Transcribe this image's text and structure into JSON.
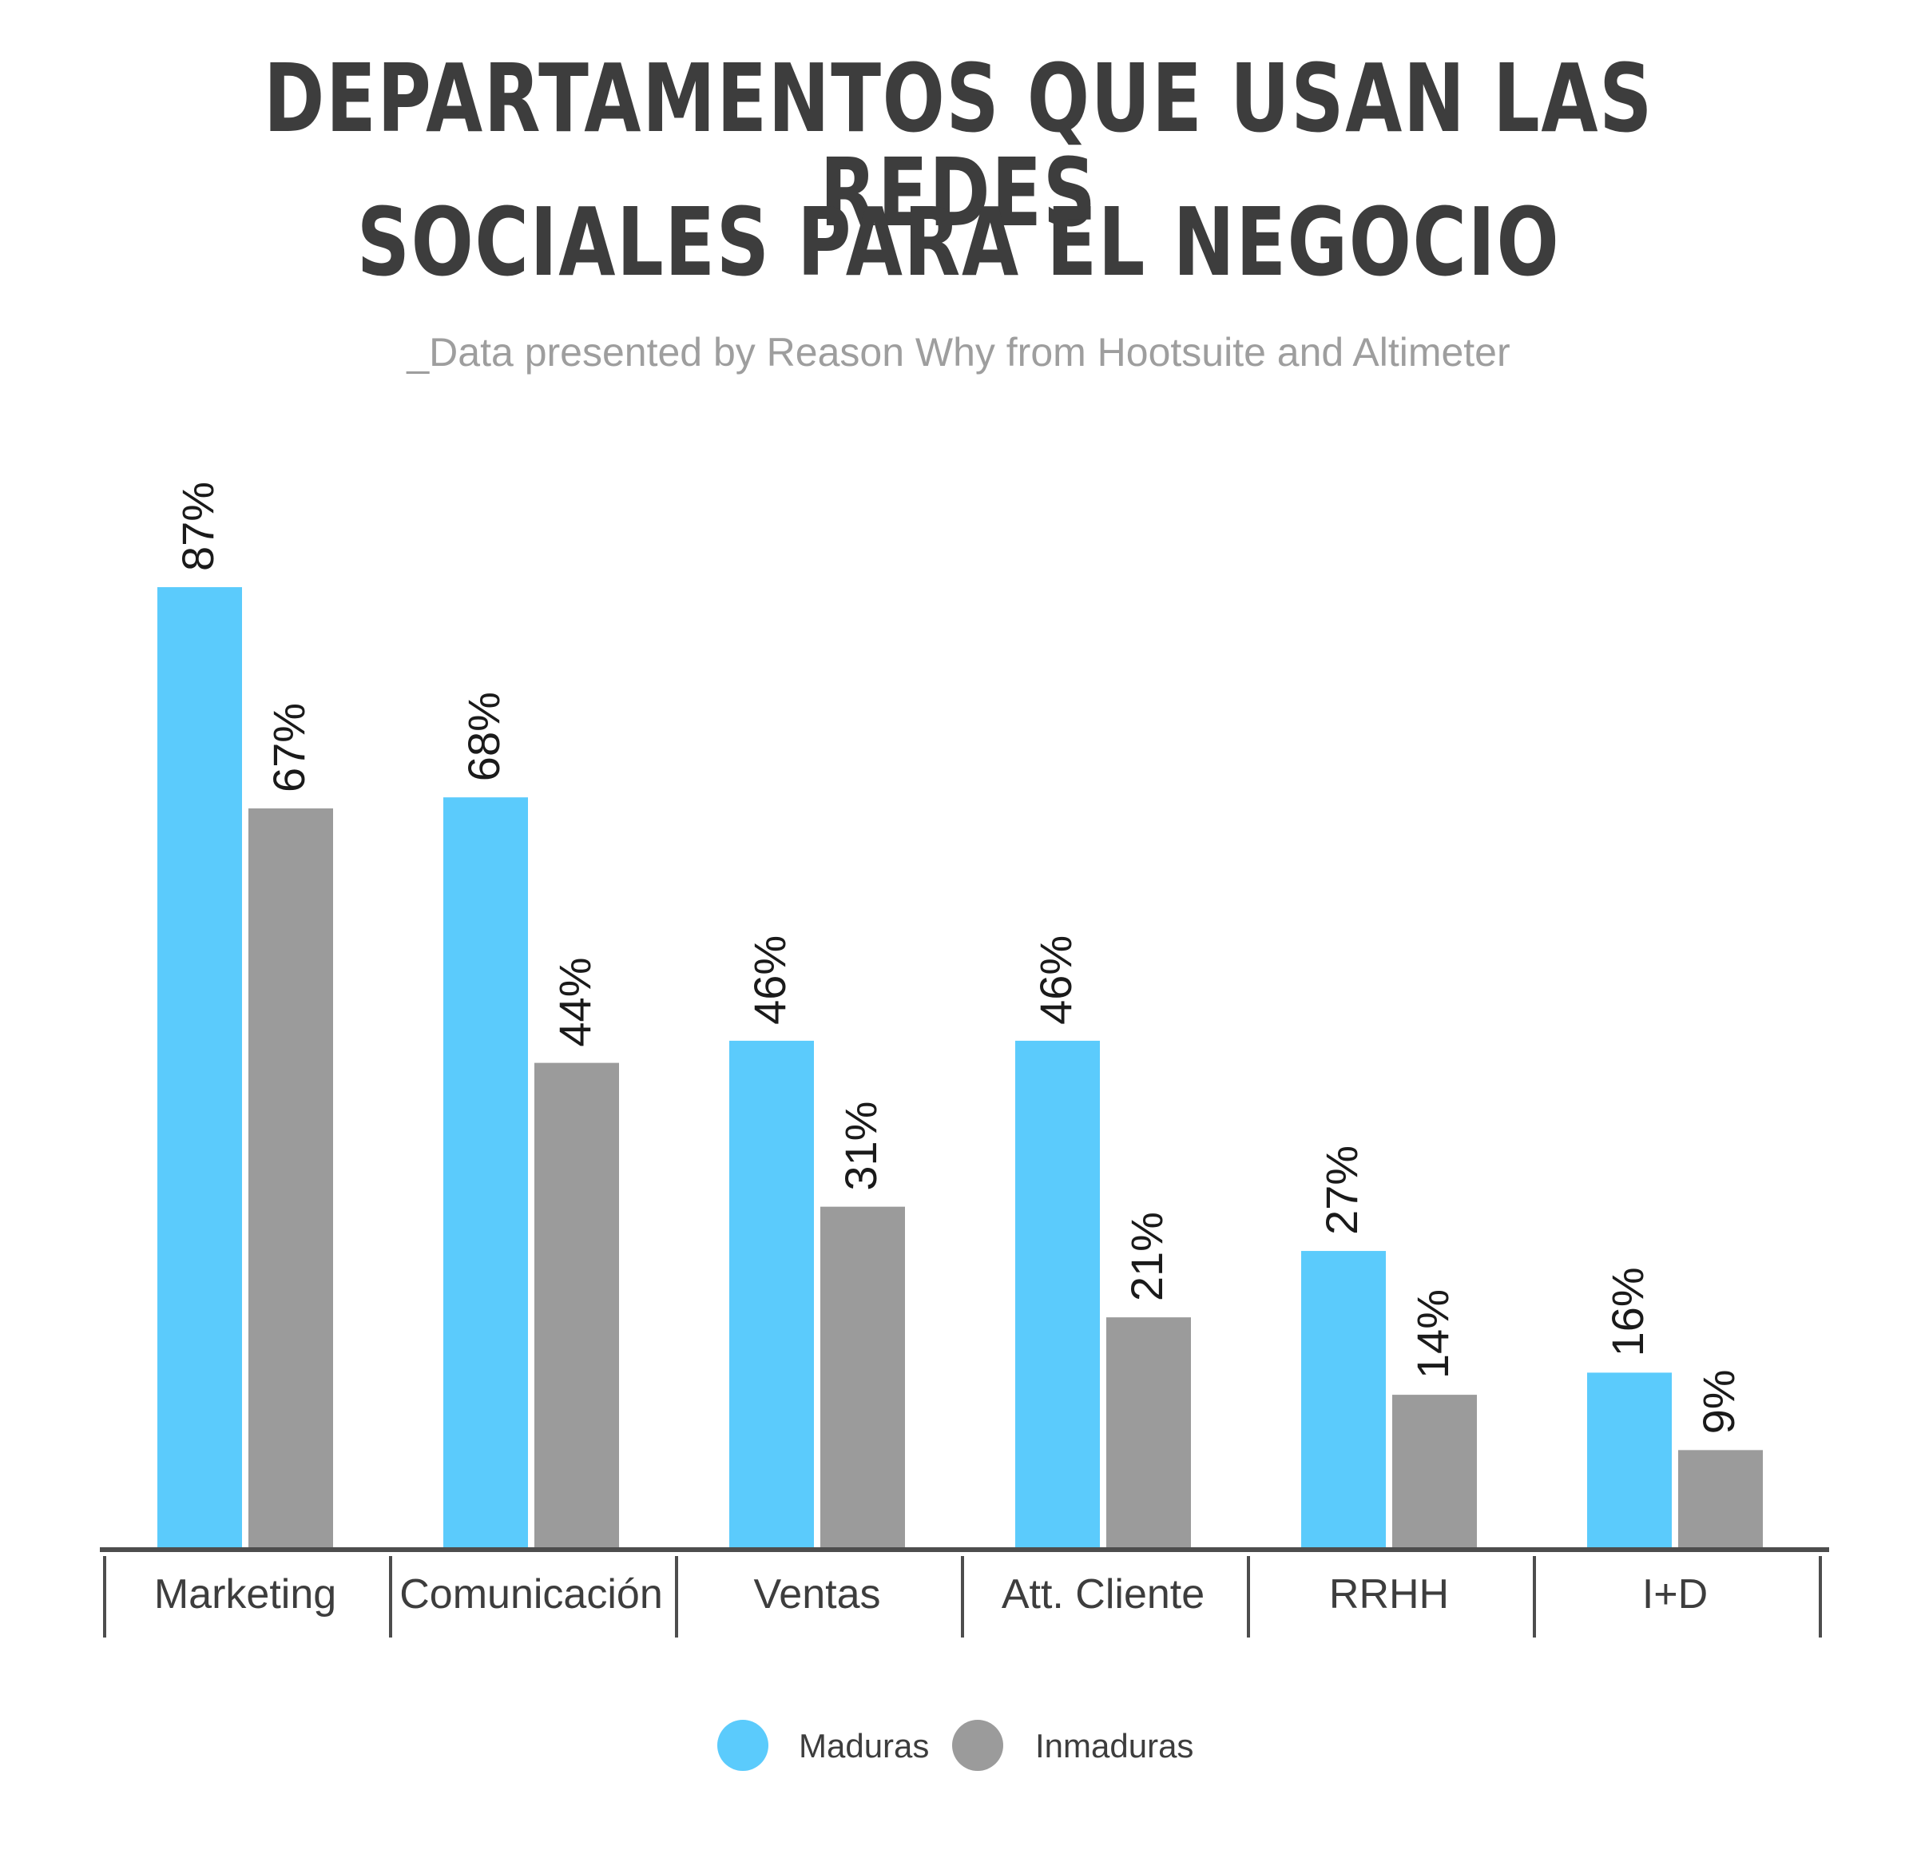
{
  "title_line1": "DEPARTAMENTOS QUE USAN LAS REDES",
  "title_line2": "SOCIALES PARA EL NEGOCIO",
  "subtitle": "_Data presented by Reason Why from Hootsuite and Altimeter",
  "colors": {
    "maduras": "#5bcbfc",
    "inmaduras": "#9b9b9b",
    "axis": "#4d4d4d",
    "text": "#3d3d3d"
  },
  "chart_data": {
    "type": "bar",
    "categories": [
      "Marketing",
      "Comunicación",
      "Ventas",
      "Att. Cliente",
      "RRHH",
      "I+D"
    ],
    "series": [
      {
        "name": "Maduras",
        "values": [
          87,
          68,
          46,
          46,
          27,
          16
        ],
        "labels": [
          "87%",
          "68%",
          "46%",
          "46%",
          "27%",
          "16%"
        ]
      },
      {
        "name": "Inmaduras",
        "values": [
          67,
          44,
          31,
          21,
          14,
          9
        ],
        "labels": [
          "67%",
          "44%",
          "31%",
          "21%",
          "14%",
          "9%"
        ]
      }
    ],
    "ylim": [
      0,
      100
    ],
    "legend_position": "bottom-center",
    "grid": false
  }
}
